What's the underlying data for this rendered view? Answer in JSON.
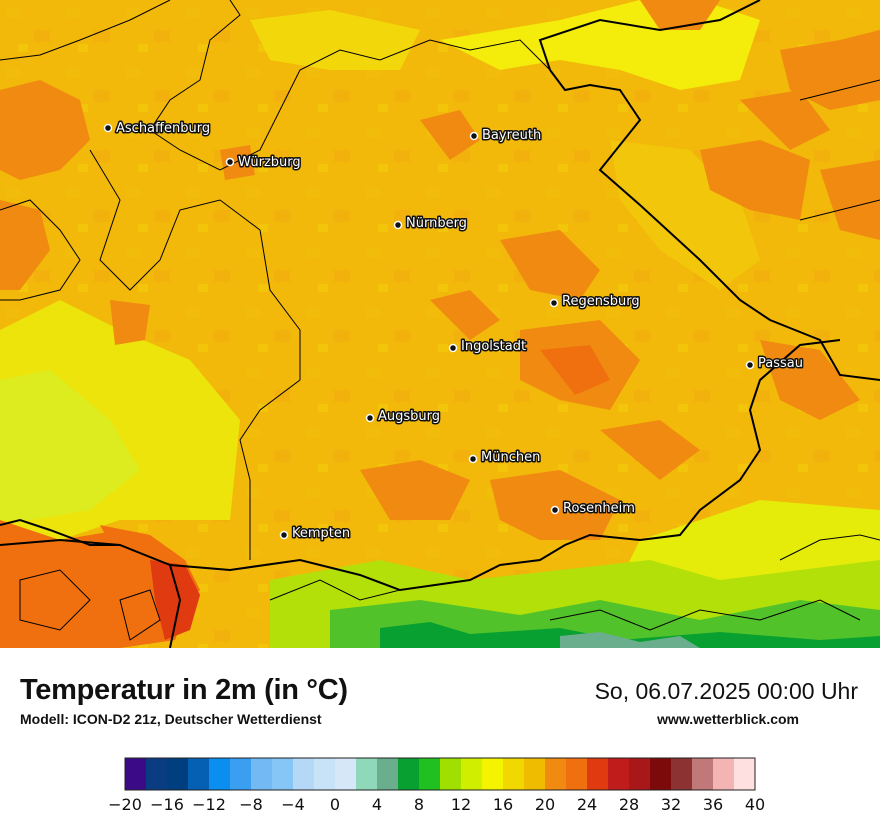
{
  "cities": [
    {
      "name": "Aschaffenburg"
    },
    {
      "name": "Würzburg"
    },
    {
      "name": "Bayreuth"
    },
    {
      "name": "Nürnberg"
    },
    {
      "name": "Regensburg"
    },
    {
      "name": "Ingolstadt"
    },
    {
      "name": "Passau"
    },
    {
      "name": "Augsburg"
    },
    {
      "name": "München"
    },
    {
      "name": "Rosenheim"
    },
    {
      "name": "Kempten"
    }
  ],
  "footer": {
    "title": "Temperatur in 2m (in °C)",
    "subtitle": "Modell: ICON-D2 21z, Deutscher Wetterdienst",
    "date": "So, 06.07.2025 00:00 Uhr",
    "website": "www.wetterblick.com"
  },
  "legend": {
    "ticks": [
      "−20",
      "−16",
      "−12",
      "−8",
      "−4",
      "0",
      "4",
      "8",
      "12",
      "16",
      "20",
      "24",
      "28",
      "32",
      "36",
      "40"
    ],
    "colors": [
      "#3b0a86",
      "#0a3c82",
      "#003f7f",
      "#0560b4",
      "#0a8ff0",
      "#3a9ff0",
      "#73baf4",
      "#86c6f6",
      "#b5d8f6",
      "#c8e2f7",
      "#d6e8f7",
      "#8fd8b9",
      "#6aae8e",
      "#08a030",
      "#20c020",
      "#a0e000",
      "#d0ee00",
      "#f4f400",
      "#f0d800",
      "#f0bc00",
      "#f08a10",
      "#f07010",
      "#e03a10",
      "#c01c1c",
      "#a81818",
      "#7c0a0a",
      "#8c3232",
      "#c07878",
      "#f4b4b4",
      "#ffe0e0"
    ],
    "min": -20,
    "max": 40
  }
}
